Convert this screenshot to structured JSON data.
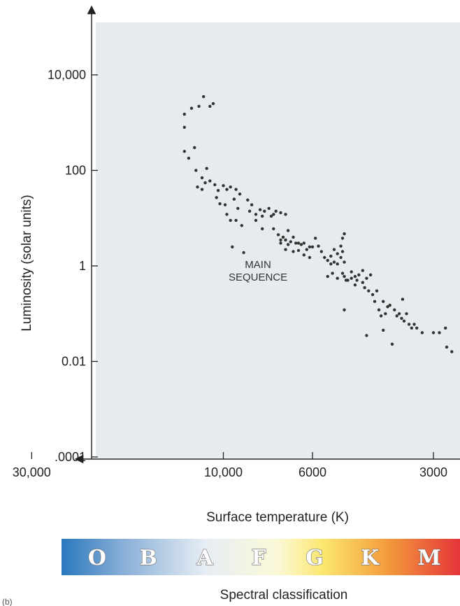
{
  "chart_data": {
    "type": "scatter",
    "title": "",
    "xlabel": "Surface temperature (K)",
    "ylabel": "Luminosity (solar units)",
    "x_scale": "log",
    "x_reversed": true,
    "y_scale": "log",
    "xlim": [
      40000,
      2500
    ],
    "ylim": [
      5e-05,
      1000000
    ],
    "x_ticks": [
      {
        "value": 30000,
        "label": "30,000"
      },
      {
        "value": 10000,
        "label": "10,000"
      },
      {
        "value": 6000,
        "label": "6000"
      },
      {
        "value": 3000,
        "label": "3000"
      }
    ],
    "y_ticks": [
      {
        "value": 10000,
        "label": "10,000"
      },
      {
        "value": 100,
        "label": "100"
      },
      {
        "value": 1,
        "label": "1"
      },
      {
        "value": 0.01,
        "label": "0.01"
      },
      {
        "value": 0.0001,
        "label": ".0001"
      }
    ],
    "annotation": {
      "text": [
        "MAIN",
        "SEQUENCE"
      ],
      "temperature": 8200,
      "luminosity": 0.9
    },
    "background_color": "#e6ebed",
    "point_color": "#333333",
    "grid": false,
    "legend": "none",
    "points": [
      [
        12500,
        1500
      ],
      [
        12500,
        800
      ],
      [
        12000,
        2000
      ],
      [
        11500,
        2200
      ],
      [
        11200,
        3500
      ],
      [
        10800,
        2200
      ],
      [
        10600,
        2500
      ],
      [
        12500,
        250
      ],
      [
        12200,
        180
      ],
      [
        11800,
        300
      ],
      [
        11700,
        100
      ],
      [
        11300,
        70
      ],
      [
        11000,
        110
      ],
      [
        11600,
        45
      ],
      [
        11300,
        40
      ],
      [
        11100,
        55
      ],
      [
        10800,
        60
      ],
      [
        10500,
        50
      ],
      [
        10300,
        38
      ],
      [
        10000,
        48
      ],
      [
        9800,
        40
      ],
      [
        10200,
        20
      ],
      [
        9600,
        45
      ],
      [
        9300,
        40
      ],
      [
        9100,
        32
      ],
      [
        8700,
        24
      ],
      [
        10400,
        27
      ],
      [
        9900,
        19
      ],
      [
        9400,
        25
      ],
      [
        9200,
        16
      ],
      [
        8500,
        19
      ],
      [
        8100,
        15
      ],
      [
        9800,
        12
      ],
      [
        9600,
        9
      ],
      [
        9300,
        9
      ],
      [
        9000,
        7
      ],
      [
        8600,
        14
      ],
      [
        8300,
        12
      ],
      [
        7900,
        14
      ],
      [
        7600,
        11
      ],
      [
        7400,
        14
      ],
      [
        7200,
        13
      ],
      [
        7000,
        12
      ],
      [
        7700,
        16
      ],
      [
        7500,
        12
      ],
      [
        8000,
        11
      ],
      [
        8300,
        9
      ],
      [
        8000,
        6
      ],
      [
        7500,
        6
      ],
      [
        7200,
        3.5
      ],
      [
        6900,
        5.5
      ],
      [
        6700,
        4
      ],
      [
        6500,
        3
      ],
      [
        6300,
        3
      ],
      [
        6100,
        2.5
      ],
      [
        7300,
        4.5
      ],
      [
        7100,
        4
      ],
      [
        7000,
        3.5
      ],
      [
        6800,
        3.2
      ],
      [
        6600,
        3
      ],
      [
        6400,
        2.8
      ],
      [
        6200,
        2.2
      ],
      [
        6000,
        2.5
      ],
      [
        7200,
        3
      ],
      [
        7000,
        2.2
      ],
      [
        6900,
        2.8
      ],
      [
        6700,
        2
      ],
      [
        6500,
        2.1
      ],
      [
        6300,
        1.7
      ],
      [
        6100,
        1.5
      ],
      [
        5900,
        3.8
      ],
      [
        5800,
        2.6
      ],
      [
        5700,
        2
      ],
      [
        5600,
        1.5
      ],
      [
        5500,
        1.3
      ],
      [
        5400,
        1.1
      ],
      [
        5300,
        1.2
      ],
      [
        5200,
        1.1
      ],
      [
        5100,
        1.5
      ],
      [
        5000,
        1.2
      ],
      [
        5400,
        1.6
      ],
      [
        5300,
        2.2
      ],
      [
        5200,
        1.8
      ],
      [
        5100,
        2.6
      ],
      [
        5050,
        3.8
      ],
      [
        5000,
        4.7
      ],
      [
        5050,
        2
      ],
      [
        9500,
        2.5
      ],
      [
        8900,
        1.9
      ],
      [
        5500,
        0.6
      ],
      [
        5350,
        0.7
      ],
      [
        5200,
        0.55
      ],
      [
        5000,
        0.6
      ],
      [
        4900,
        0.5
      ],
      [
        4800,
        0.55
      ],
      [
        4700,
        0.4
      ],
      [
        4650,
        0.5
      ],
      [
        4600,
        0.65
      ],
      [
        4500,
        0.45
      ],
      [
        4450,
        0.35
      ],
      [
        4350,
        0.3
      ],
      [
        4250,
        0.25
      ],
      [
        4150,
        0.3
      ],
      [
        4500,
        0.8
      ],
      [
        4400,
        0.55
      ],
      [
        4300,
        0.65
      ],
      [
        4700,
        0.6
      ],
      [
        4800,
        0.75
      ],
      [
        4950,
        0.5
      ],
      [
        5050,
        0.7
      ],
      [
        4200,
        0.18
      ],
      [
        4100,
        0.12
      ],
      [
        4000,
        0.18
      ],
      [
        3950,
        0.1
      ],
      [
        3850,
        0.15
      ],
      [
        3750,
        0.12
      ],
      [
        3700,
        0.09
      ],
      [
        3600,
        0.08
      ],
      [
        3550,
        0.07
      ],
      [
        3500,
        0.1
      ],
      [
        3450,
        0.06
      ],
      [
        3400,
        0.05
      ],
      [
        3350,
        0.06
      ],
      [
        3300,
        0.05
      ],
      [
        4050,
        0.09
      ],
      [
        3900,
        0.14
      ],
      [
        3650,
        0.1
      ],
      [
        3200,
        0.04
      ],
      [
        3000,
        0.04
      ],
      [
        2900,
        0.04
      ],
      [
        2800,
        0.05
      ],
      [
        2780,
        0.02
      ],
      [
        2700,
        0.016
      ],
      [
        3580,
        0.2
      ],
      [
        4400,
        0.035
      ],
      [
        4000,
        0.045
      ],
      [
        3800,
        0.023
      ],
      [
        5000,
        0.12
      ]
    ],
    "spectral_classification": {
      "label": "Spectral classification",
      "classes": [
        "O",
        "B",
        "A",
        "F",
        "G",
        "K",
        "M"
      ]
    }
  },
  "corner_mark": "(b)"
}
